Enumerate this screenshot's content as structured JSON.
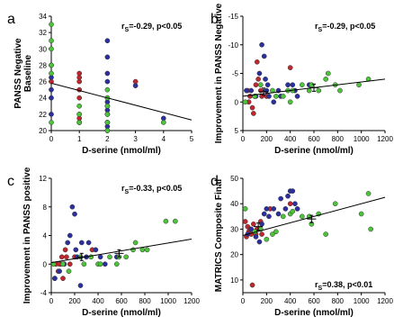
{
  "chart_data": [
    {
      "type": "scatter",
      "panel_label": "a",
      "xlabel": "D-serine (nmol/ml)",
      "ylabel": "PANSS Negative Baseline",
      "ylabel_lines": [
        "PANSS Negative",
        "Baseline"
      ],
      "xlim": [
        0,
        5
      ],
      "ylim": [
        20,
        34
      ],
      "xticks": [
        0,
        1,
        2,
        3,
        4,
        5
      ],
      "yticks": [
        20,
        22,
        24,
        26,
        28,
        30,
        32,
        34
      ],
      "reversed_y": false,
      "stat_label": "r",
      "stat_sub": "S",
      "stat_value": "=-0.29, p<0.05",
      "stat_position": "top-right",
      "regression": [
        [
          0,
          25.8
        ],
        [
          5,
          21.3
        ]
      ],
      "points": {
        "red": [
          [
            1,
            27
          ],
          [
            1,
            26.5
          ],
          [
            1,
            26
          ],
          [
            1,
            25
          ],
          [
            1,
            24
          ],
          [
            1,
            22
          ],
          [
            1,
            21.5
          ],
          [
            1,
            21
          ],
          [
            1,
            21
          ],
          [
            2,
            23
          ],
          [
            2,
            22
          ],
          [
            2,
            21
          ],
          [
            3,
            26
          ],
          [
            0,
            26
          ]
        ],
        "blue": [
          [
            0,
            28
          ],
          [
            0,
            26.5
          ],
          [
            0,
            25
          ],
          [
            0,
            24
          ],
          [
            0,
            22
          ],
          [
            2,
            31
          ],
          [
            2,
            29
          ],
          [
            2,
            27
          ],
          [
            2,
            26
          ],
          [
            2,
            24
          ],
          [
            2,
            23.5
          ],
          [
            2,
            23
          ],
          [
            2,
            22.5
          ],
          [
            2,
            22
          ],
          [
            2,
            21
          ],
          [
            2,
            20.5
          ],
          [
            3,
            25.5
          ],
          [
            4,
            21.5
          ]
        ],
        "green": [
          [
            0,
            33
          ],
          [
            0,
            31
          ],
          [
            0,
            30
          ],
          [
            0,
            28
          ],
          [
            0,
            27
          ],
          [
            0,
            21
          ],
          [
            1,
            23
          ],
          [
            1,
            22
          ],
          [
            1,
            21
          ],
          [
            2,
            25
          ],
          [
            2,
            24
          ],
          [
            2,
            23
          ],
          [
            2,
            22
          ],
          [
            2,
            21
          ],
          [
            2,
            20
          ],
          [
            2,
            20
          ],
          [
            4,
            21
          ]
        ]
      },
      "means": []
    },
    {
      "type": "scatter",
      "panel_label": "b",
      "xlabel": "D-serine (nmol/ml)",
      "ylabel": "Improvement in PANSS Negative",
      "ylabel_lines": [
        "Improvement in PANSS Negative"
      ],
      "xlim": [
        0,
        1200
      ],
      "ylim": [
        -15,
        5
      ],
      "xticks": [
        0,
        200,
        400,
        600,
        800,
        1000,
        1200
      ],
      "yticks": [
        -15,
        -10,
        -5,
        0,
        5
      ],
      "reversed_y": true,
      "stat_label": "r",
      "stat_sub": "S",
      "stat_value": "=-0.29, p<0.05",
      "stat_position": "top-right",
      "regression": [
        [
          0,
          -1.0
        ],
        [
          1200,
          -4.0
        ]
      ],
      "points": {
        "red": [
          [
            40,
            -2
          ],
          [
            60,
            -1
          ],
          [
            80,
            1
          ],
          [
            90,
            2
          ],
          [
            100,
            -1
          ],
          [
            110,
            -3
          ],
          [
            120,
            -7
          ],
          [
            130,
            -4
          ],
          [
            150,
            -2
          ],
          [
            160,
            -1
          ],
          [
            200,
            -1
          ],
          [
            400,
            -6
          ],
          [
            50,
            0
          ]
        ],
        "blue": [
          [
            30,
            -2
          ],
          [
            70,
            -2
          ],
          [
            110,
            -1
          ],
          [
            140,
            -5
          ],
          [
            160,
            -10
          ],
          [
            180,
            -8
          ],
          [
            190,
            -4
          ],
          [
            200,
            -2
          ],
          [
            210,
            -3
          ],
          [
            220,
            -1
          ],
          [
            260,
            0
          ],
          [
            300,
            -2
          ],
          [
            320,
            -1
          ],
          [
            380,
            -3
          ],
          [
            420,
            -3
          ],
          [
            440,
            -2
          ],
          [
            460,
            -1
          ],
          [
            560,
            -3
          ]
        ],
        "green": [
          [
            20,
            0
          ],
          [
            100,
            -1
          ],
          [
            150,
            -3
          ],
          [
            250,
            -2
          ],
          [
            280,
            -1
          ],
          [
            340,
            -1
          ],
          [
            380,
            -2
          ],
          [
            400,
            0
          ],
          [
            420,
            -2
          ],
          [
            500,
            -3
          ],
          [
            560,
            -2
          ],
          [
            580,
            -3
          ],
          [
            640,
            -2
          ],
          [
            700,
            -4
          ],
          [
            720,
            -5
          ],
          [
            780,
            -3
          ],
          [
            820,
            -2
          ],
          [
            980,
            -3
          ],
          [
            1060,
            -4
          ]
        ]
      },
      "means": [
        [
          175,
          -1.8
        ],
        [
          600,
          -2.5
        ]
      ]
    },
    {
      "type": "scatter",
      "panel_label": "c",
      "xlabel": "D-serine (nmol/ml)",
      "ylabel": "Improvement in PANSS positive",
      "ylabel_lines": [
        "Improvement in PANSS positive"
      ],
      "xlim": [
        0,
        1200
      ],
      "ylim": [
        -4,
        12
      ],
      "xticks": [
        0,
        200,
        400,
        600,
        800,
        1000,
        1200
      ],
      "yticks": [
        -4,
        0,
        4,
        8,
        12
      ],
      "reversed_y": false,
      "stat_label": "r",
      "stat_sub": "S",
      "stat_value": "=-0.33, p<0.05",
      "stat_position": "top-right",
      "regression": [
        [
          0,
          0.2
        ],
        [
          1200,
          3.5
        ]
      ],
      "points": {
        "red": [
          [
            40,
            0
          ],
          [
            60,
            -1
          ],
          [
            80,
            0
          ],
          [
            90,
            1
          ],
          [
            100,
            -2
          ],
          [
            110,
            0
          ],
          [
            120,
            2
          ],
          [
            130,
            1
          ],
          [
            160,
            0
          ],
          [
            200,
            1
          ],
          [
            350,
            2
          ],
          [
            30,
            -2
          ],
          [
            70,
            0
          ]
        ],
        "blue": [
          [
            30,
            -2
          ],
          [
            70,
            -1
          ],
          [
            110,
            0
          ],
          [
            140,
            3
          ],
          [
            160,
            4
          ],
          [
            180,
            8
          ],
          [
            200,
            7
          ],
          [
            210,
            2
          ],
          [
            220,
            1
          ],
          [
            260,
            3
          ],
          [
            300,
            1
          ],
          [
            320,
            3
          ],
          [
            380,
            2
          ],
          [
            420,
            1
          ],
          [
            460,
            0
          ],
          [
            560,
            1
          ],
          [
            250,
            -3
          ]
        ],
        "green": [
          [
            20,
            0
          ],
          [
            100,
            0
          ],
          [
            150,
            -1
          ],
          [
            250,
            1
          ],
          [
            280,
            0
          ],
          [
            340,
            1
          ],
          [
            400,
            0
          ],
          [
            420,
            0
          ],
          [
            500,
            1
          ],
          [
            560,
            0
          ],
          [
            580,
            1
          ],
          [
            640,
            1
          ],
          [
            700,
            2
          ],
          [
            720,
            3
          ],
          [
            780,
            2
          ],
          [
            820,
            2
          ],
          [
            980,
            6
          ],
          [
            1060,
            6
          ]
        ]
      },
      "means": [
        [
          260,
          1.0
        ],
        [
          580,
          1.5
        ]
      ]
    },
    {
      "type": "scatter",
      "panel_label": "d",
      "xlabel": "D-serine (nmol/ml)",
      "ylabel": "MATRICS Composite Final",
      "ylabel_lines": [
        "MATRICS Composite Final"
      ],
      "xlim": [
        0,
        1200
      ],
      "ylim": [
        5,
        50
      ],
      "xticks": [
        0,
        200,
        400,
        600,
        800,
        1000,
        1200
      ],
      "yticks": [
        10,
        20,
        30,
        40,
        50
      ],
      "reversed_y": false,
      "stat_label": "r",
      "stat_sub": "S",
      "stat_value": "=0.38, p<0.01",
      "stat_position": "bottom-right",
      "regression": [
        [
          0,
          27.5
        ],
        [
          1200,
          42.5
        ]
      ],
      "points": {
        "red": [
          [
            20,
            33
          ],
          [
            40,
            31
          ],
          [
            50,
            29
          ],
          [
            60,
            30
          ],
          [
            70,
            28
          ],
          [
            80,
            8
          ],
          [
            90,
            32
          ],
          [
            100,
            29
          ],
          [
            110,
            28
          ],
          [
            120,
            30
          ],
          [
            150,
            33
          ],
          [
            160,
            28
          ],
          [
            230,
            38
          ],
          [
            400,
            40
          ],
          [
            30,
            27
          ]
        ],
        "blue": [
          [
            40,
            28
          ],
          [
            70,
            30
          ],
          [
            110,
            27
          ],
          [
            140,
            25
          ],
          [
            160,
            32
          ],
          [
            180,
            36
          ],
          [
            200,
            38
          ],
          [
            220,
            35
          ],
          [
            260,
            38
          ],
          [
            300,
            36
          ],
          [
            320,
            42
          ],
          [
            360,
            38
          ],
          [
            380,
            43
          ],
          [
            400,
            45
          ],
          [
            420,
            45
          ],
          [
            440,
            40
          ],
          [
            460,
            38
          ]
        ],
        "green": [
          [
            20,
            38
          ],
          [
            100,
            29
          ],
          [
            150,
            30
          ],
          [
            200,
            26
          ],
          [
            250,
            28
          ],
          [
            280,
            29
          ],
          [
            340,
            35
          ],
          [
            400,
            36
          ],
          [
            420,
            37
          ],
          [
            500,
            35
          ],
          [
            560,
            35
          ],
          [
            580,
            32
          ],
          [
            640,
            36
          ],
          [
            700,
            28
          ],
          [
            780,
            40
          ],
          [
            1000,
            36
          ],
          [
            1060,
            44
          ],
          [
            1080,
            30
          ]
        ]
      },
      "means": [
        [
          130,
          31
        ],
        [
          580,
          34
        ]
      ]
    }
  ],
  "colors": {
    "red": "#c0272d",
    "blue": "#2b2fa0",
    "green": "#4cc43a"
  }
}
